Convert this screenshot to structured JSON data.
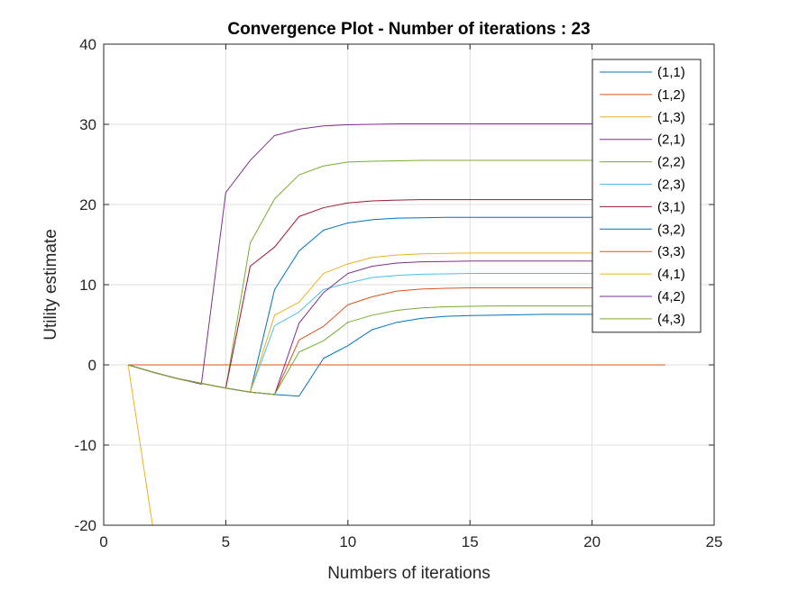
{
  "chart_data": {
    "type": "line",
    "title": "Convergence Plot - Number of iterations : 23",
    "xlabel": "Numbers of iterations",
    "ylabel": "Utility estimate",
    "xlim": [
      0,
      25
    ],
    "ylim": [
      -20,
      40
    ],
    "xticks": [
      "0",
      "5",
      "10",
      "15",
      "20",
      "25"
    ],
    "yticks": [
      "-20",
      "-10",
      "0",
      "10",
      "20",
      "30",
      "40"
    ],
    "xtick_values": [
      0,
      5,
      10,
      15,
      20,
      25
    ],
    "ytick_values": [
      -20,
      -10,
      0,
      10,
      20,
      30,
      40
    ],
    "grid": true,
    "legend_position": "top-right",
    "x": [
      1,
      2,
      3,
      4,
      5,
      6,
      7,
      8,
      9,
      10,
      11,
      12,
      13,
      14,
      15,
      16,
      17,
      18,
      19,
      20,
      21,
      22,
      23
    ],
    "series": [
      {
        "name": "(1,1)",
        "color": "#0072BD",
        "values": [
          0,
          -0.9,
          -1.7,
          -2.3,
          -2.9,
          -3.4,
          -3.7,
          -3.9,
          0.8,
          2.4,
          4.4,
          5.3,
          5.8,
          6.05,
          6.15,
          6.2,
          6.25,
          6.3,
          6.3,
          6.3,
          6.3,
          6.3,
          6.3
        ]
      },
      {
        "name": "(1,2)",
        "color": "#D95319",
        "values": [
          0,
          0,
          0,
          0,
          0,
          0,
          0,
          0,
          0,
          0,
          0,
          0,
          0,
          0,
          0,
          0,
          0,
          0,
          0,
          0,
          0,
          0,
          0
        ]
      },
      {
        "name": "(1,3)",
        "color": "#EDB120",
        "values": [
          0,
          -20,
          -20,
          -20,
          -20,
          -20,
          -20,
          -20,
          -20,
          -20,
          -20,
          -20,
          -20,
          -20,
          -20,
          -20,
          -20,
          -20,
          -20,
          -20,
          -20,
          -20,
          -20
        ]
      },
      {
        "name": "(2,1)",
        "color": "#7E2F8E",
        "values": [
          0,
          -0.9,
          -1.7,
          -2.4,
          21.5,
          25.5,
          28.6,
          29.4,
          29.8,
          29.95,
          30.0,
          30.05,
          30.05,
          30.05,
          30.05,
          30.05,
          30.05,
          30.05,
          30.05,
          30.05,
          30.05,
          30.05,
          30.05
        ]
      },
      {
        "name": "(2,2)",
        "color": "#77AC30",
        "values": [
          0,
          -0.9,
          -1.7,
          -2.3,
          -2.9,
          15.2,
          20.7,
          23.7,
          24.8,
          25.3,
          25.4,
          25.45,
          25.5,
          25.5,
          25.5,
          25.5,
          25.5,
          25.5,
          25.5,
          25.5,
          25.5,
          25.5,
          25.5
        ]
      },
      {
        "name": "(2,3)",
        "color": "#4DBEEE",
        "values": [
          0,
          -0.9,
          -1.7,
          -2.3,
          -2.9,
          -3.4,
          4.9,
          6.6,
          9.4,
          10.2,
          10.9,
          11.15,
          11.3,
          11.35,
          11.4,
          11.4,
          11.4,
          11.4,
          11.4,
          11.4,
          11.4,
          11.4,
          11.4
        ]
      },
      {
        "name": "(3,1)",
        "color": "#A2142F",
        "values": [
          0,
          -0.9,
          -1.7,
          -2.3,
          -2.9,
          12.3,
          14.7,
          18.5,
          19.6,
          20.2,
          20.45,
          20.55,
          20.6,
          20.6,
          20.6,
          20.6,
          20.6,
          20.6,
          20.6,
          20.6,
          20.6,
          20.6,
          20.6
        ]
      },
      {
        "name": "(3,2)",
        "color": "#0072BD",
        "values": [
          0,
          -0.9,
          -1.7,
          -2.3,
          -2.9,
          -3.4,
          9.4,
          14.2,
          16.8,
          17.7,
          18.1,
          18.3,
          18.35,
          18.4,
          18.4,
          18.4,
          18.4,
          18.4,
          18.4,
          18.4,
          18.4,
          18.4,
          18.4
        ]
      },
      {
        "name": "(3,3)",
        "color": "#D95319",
        "values": [
          0,
          -0.9,
          -1.7,
          -2.3,
          -2.9,
          -3.4,
          -3.7,
          3.1,
          4.8,
          7.5,
          8.5,
          9.2,
          9.45,
          9.55,
          9.6,
          9.6,
          9.6,
          9.6,
          9.6,
          9.6,
          9.6,
          9.6,
          9.6
        ]
      },
      {
        "name": "(4,1)",
        "color": "#EDB120",
        "values": [
          0,
          -0.9,
          -1.7,
          -2.3,
          -2.9,
          -3.4,
          6.2,
          7.8,
          11.4,
          12.6,
          13.4,
          13.7,
          13.85,
          13.9,
          13.95,
          13.95,
          13.95,
          13.95,
          13.95,
          13.95,
          13.95,
          13.95,
          13.95
        ]
      },
      {
        "name": "(4,2)",
        "color": "#7E2F8E",
        "values": [
          0,
          -0.9,
          -1.7,
          -2.3,
          -2.9,
          -3.4,
          -3.7,
          5.2,
          9.0,
          11.4,
          12.3,
          12.7,
          12.85,
          12.9,
          12.95,
          12.95,
          12.95,
          12.95,
          12.95,
          12.95,
          12.95,
          12.95,
          12.95
        ]
      },
      {
        "name": "(4,3)",
        "color": "#77AC30",
        "values": [
          0,
          -0.9,
          -1.7,
          -2.3,
          -2.9,
          -3.4,
          -3.7,
          1.6,
          3.0,
          5.3,
          6.2,
          6.8,
          7.1,
          7.25,
          7.3,
          7.35,
          7.35,
          7.35,
          7.35,
          7.35,
          7.35,
          7.35,
          7.35
        ]
      }
    ]
  }
}
